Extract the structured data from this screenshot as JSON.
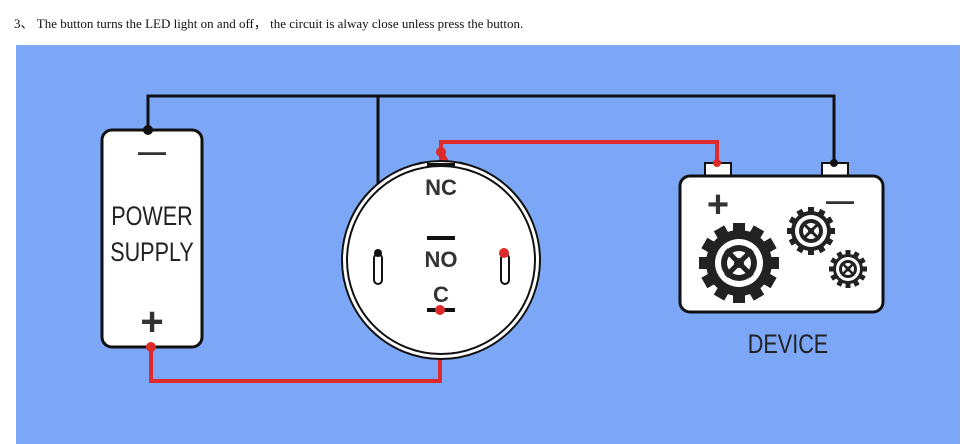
{
  "caption": "3、 The button turns the LED light on and off， the circuit is alway close unless press the button.",
  "diagram": {
    "power_supply_line1": "POWER",
    "power_supply_line2": "SUPPLY",
    "power_minus": "—",
    "power_plus": "+",
    "switch_nc": "NC",
    "switch_no": "NO",
    "switch_c": "C",
    "device_plus": "+",
    "device_minus": "—",
    "device_label": "DEVICE"
  },
  "colors": {
    "background": "#7ca7f6",
    "red_wire": "#dd2b2b",
    "black_wire": "#111111"
  }
}
